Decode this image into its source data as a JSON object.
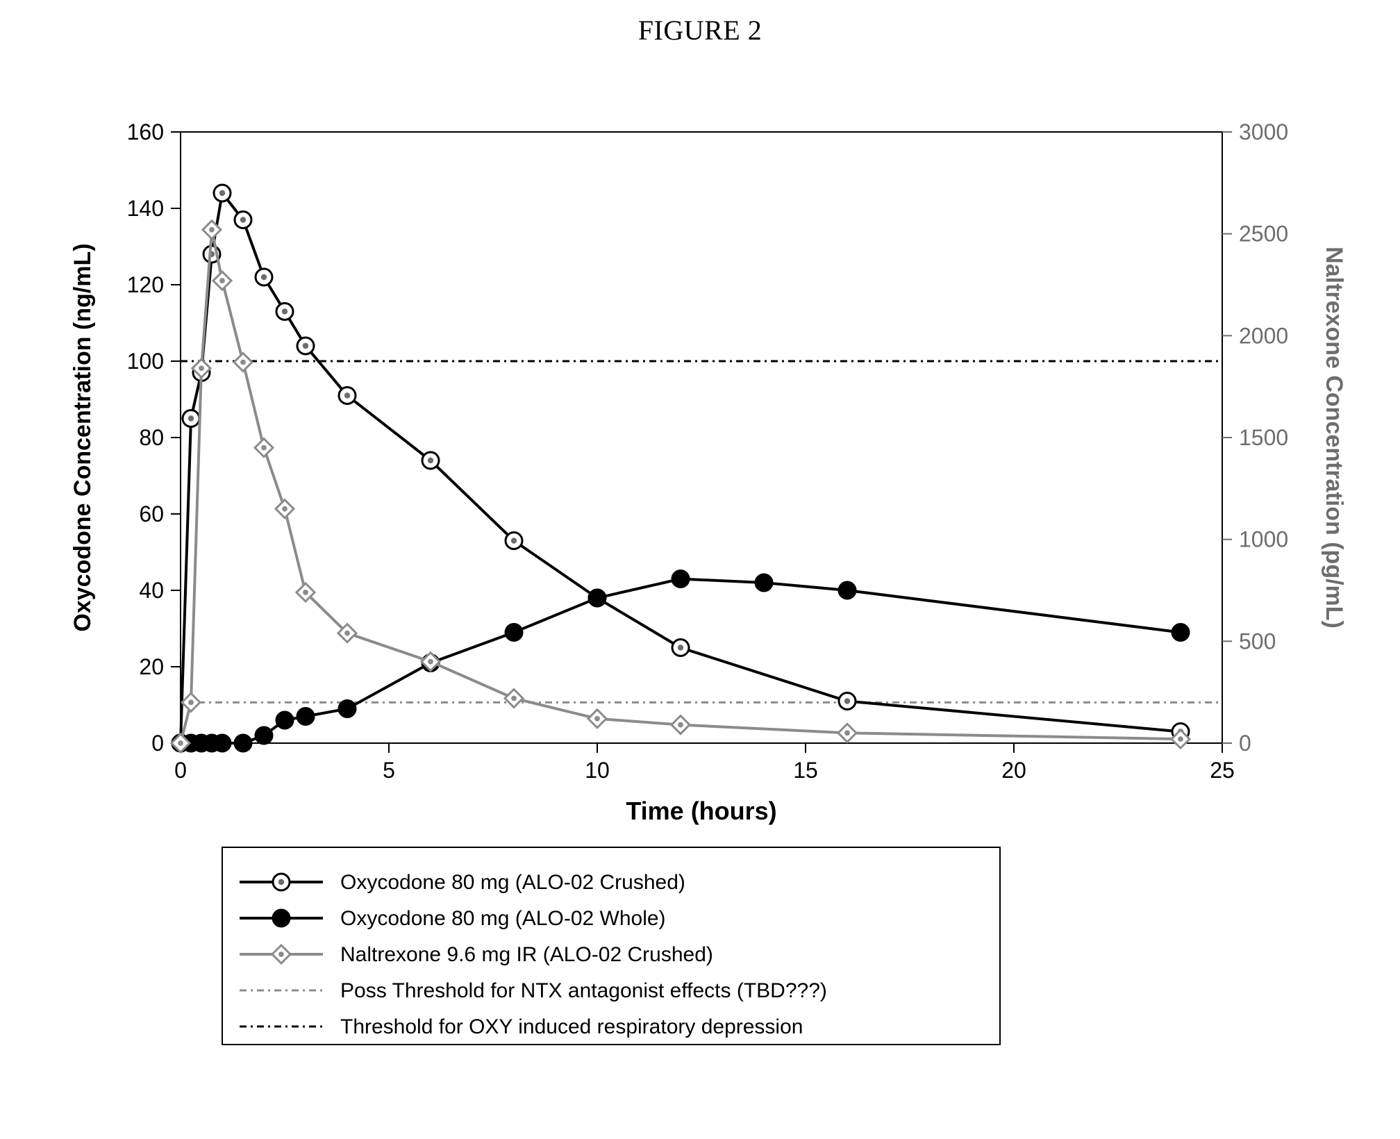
{
  "figure": {
    "title": "FIGURE 2",
    "type": "line",
    "background_color": "#ffffff",
    "plot_border_color": "#000000",
    "plot_border_width": 2,
    "xaxis": {
      "label": "Time (hours)",
      "min": 0,
      "max": 25,
      "ticks": [
        0,
        5,
        10,
        15,
        20,
        25
      ],
      "tick_fontsize": 32,
      "label_fontsize": 36,
      "tick_color": "#000000",
      "label_color": "#000000"
    },
    "yaxis_left": {
      "label": "Oxycodone Concentration (ng/mL)",
      "min": 0,
      "max": 160,
      "ticks": [
        0,
        20,
        40,
        60,
        80,
        100,
        120,
        140,
        160
      ],
      "tick_fontsize": 32,
      "label_fontsize": 34,
      "tick_color": "#000000",
      "label_color": "#000000"
    },
    "yaxis_right": {
      "label": "Naltrexone Concentration (pg/mL)",
      "min": 0,
      "max": 3000,
      "ticks": [
        0,
        500,
        1000,
        1500,
        2000,
        2500,
        3000
      ],
      "tick_fontsize": 32,
      "label_fontsize": 34,
      "tick_color": "#6d6d6d",
      "label_color": "#6d6d6d"
    },
    "series": [
      {
        "id": "oxy_crushed",
        "label": "Oxycodone 80 mg (ALO-02 Crushed)",
        "axis": "left",
        "line_color": "#000000",
        "line_width": 4,
        "marker": {
          "shape": "circle",
          "size": 12,
          "fill": "#ffffff",
          "stroke": "#000000",
          "stroke_width": 3,
          "inner_dot": "#6d6d6d"
        },
        "x": [
          0,
          0.25,
          0.5,
          0.75,
          1,
          1.5,
          2,
          2.5,
          3,
          4,
          6,
          8,
          10,
          12,
          16,
          24
        ],
        "y": [
          0,
          85,
          97,
          128,
          144,
          137,
          122,
          113,
          104,
          91,
          74,
          53,
          38,
          25,
          11,
          3
        ]
      },
      {
        "id": "oxy_whole",
        "label": "Oxycodone 80 mg (ALO-02 Whole)",
        "axis": "left",
        "line_color": "#000000",
        "line_width": 4,
        "marker": {
          "shape": "circle",
          "size": 12,
          "fill": "#000000",
          "stroke": "#000000",
          "stroke_width": 3
        },
        "x": [
          0,
          0.25,
          0.5,
          0.75,
          1,
          1.5,
          2,
          2.5,
          3,
          4,
          6,
          8,
          10,
          12,
          14,
          16,
          24
        ],
        "y": [
          0,
          0,
          0,
          0,
          0,
          0,
          2,
          6,
          7,
          9,
          21,
          29,
          38,
          43,
          42,
          40,
          29
        ]
      },
      {
        "id": "ntx_crushed",
        "label": "Naltrexone 9.6 mg IR (ALO-02 Crushed)",
        "axis": "right",
        "line_color": "#8b8b8b",
        "line_width": 4,
        "marker": {
          "shape": "diamond",
          "size": 13,
          "fill": "#ffffff",
          "stroke": "#8b8b8b",
          "stroke_width": 3,
          "inner_dot": "#8b8b8b"
        },
        "x": [
          0,
          0.25,
          0.5,
          0.75,
          1,
          1.5,
          2,
          2.5,
          3,
          4,
          6,
          8,
          10,
          12,
          16,
          24
        ],
        "y": [
          0,
          200,
          1840,
          2520,
          2270,
          1870,
          1450,
          1150,
          740,
          540,
          400,
          220,
          120,
          90,
          50,
          20
        ]
      }
    ],
    "thresholds": [
      {
        "id": "ntx_thresh",
        "label": "Poss Threshold for NTX antagonist effects (TBD???)",
        "axis": "right",
        "value": 200,
        "color": "#8b8b8b",
        "dash": "10,6,3,6",
        "width": 3
      },
      {
        "id": "oxy_thresh",
        "label": "Threshold for OXY induced  respiratory depression",
        "axis": "left",
        "value": 100,
        "color": "#000000",
        "dash": "10,6,3,6",
        "width": 3
      }
    ],
    "legend": {
      "border_color": "#000000",
      "border_width": 2,
      "fontsize": 30,
      "entries": [
        "oxy_crushed",
        "oxy_whole",
        "ntx_crushed",
        "ntx_thresh",
        "oxy_thresh"
      ]
    }
  }
}
